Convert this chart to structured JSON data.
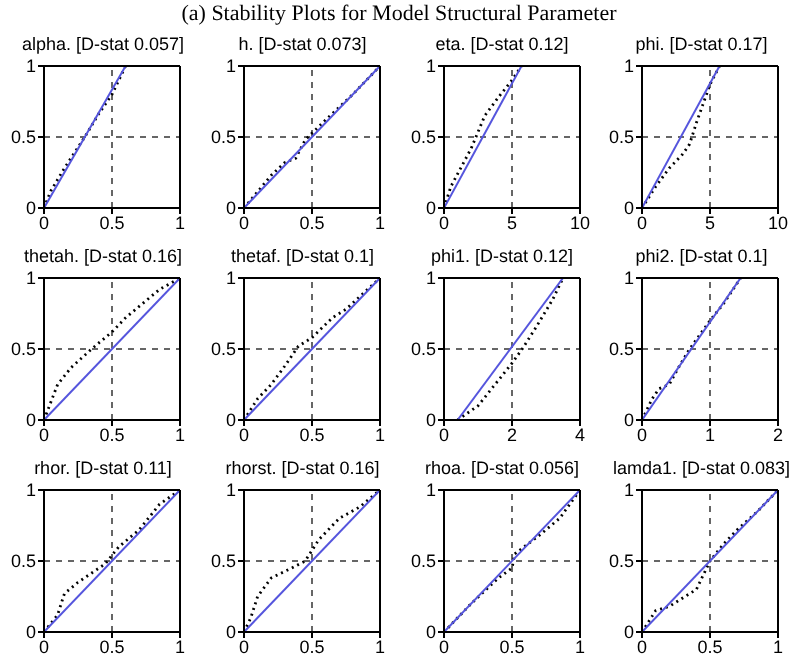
{
  "chart_data": [
    {
      "type": "other",
      "title": "(a)  Stability Plots for Model Structural Parameter"
    },
    {
      "type": "line",
      "title": "alpha. [D-stat 0.057]",
      "xlim": [
        0,
        1
      ],
      "xticks": [
        0,
        0.5,
        1
      ],
      "ylim": [
        0,
        1
      ],
      "yticks": [
        0,
        0.5,
        1
      ],
      "marker": "none",
      "ref_lines": [
        {
          "axis": "x",
          "value": 0.5,
          "color": "#666666",
          "line_style": "dashed"
        },
        {
          "axis": "y",
          "value": 0.5,
          "color": "#666666",
          "line_style": "dashed"
        }
      ],
      "series": [
        {
          "color": "#000000",
          "line_style": "dotted",
          "x": [
            0,
            0.05,
            0.15,
            0.3,
            0.4,
            0.5,
            0.6
          ],
          "values": [
            0,
            0.12,
            0.28,
            0.5,
            0.66,
            0.8,
            1
          ]
        },
        {
          "color": "#5555dd",
          "line_style": "solid",
          "x": [
            0,
            0.6
          ],
          "values": [
            0,
            1
          ]
        }
      ]
    },
    {
      "type": "line",
      "title": "h. [D-stat 0.073]",
      "xlim": [
        0,
        1
      ],
      "xticks": [
        0,
        0.5,
        1
      ],
      "ylim": [
        0,
        1
      ],
      "yticks": [
        0,
        0.5,
        1
      ],
      "marker": "none",
      "ref_lines": [
        {
          "axis": "x",
          "value": 0.5,
          "color": "#666666",
          "line_style": "dashed"
        },
        {
          "axis": "y",
          "value": 0.5,
          "color": "#666666",
          "line_style": "dashed"
        }
      ],
      "series": [
        {
          "color": "#000000",
          "line_style": "dotted",
          "x": [
            0,
            0.2,
            0.3,
            0.38,
            0.45,
            0.6,
            0.8,
            1
          ],
          "values": [
            0,
            0.23,
            0.32,
            0.35,
            0.48,
            0.62,
            0.8,
            1
          ]
        },
        {
          "color": "#5555dd",
          "line_style": "solid",
          "x": [
            0,
            1
          ],
          "values": [
            0,
            1
          ]
        }
      ]
    },
    {
      "type": "line",
      "title": "eta. [D-stat 0.12]",
      "xlim": [
        0,
        10
      ],
      "xticks": [
        0,
        5,
        10
      ],
      "ylim": [
        0,
        1
      ],
      "yticks": [
        0,
        0.5,
        1
      ],
      "marker": "none",
      "ref_lines": [
        {
          "axis": "x",
          "value": 5,
          "color": "#666666",
          "line_style": "dashed"
        },
        {
          "axis": "y",
          "value": 0.5,
          "color": "#666666",
          "line_style": "dashed"
        }
      ],
      "series": [
        {
          "color": "#000000",
          "line_style": "dotted",
          "x": [
            0,
            0.5,
            2,
            3,
            4,
            5,
            5.7
          ],
          "values": [
            0,
            0.15,
            0.42,
            0.65,
            0.78,
            0.9,
            1
          ]
        },
        {
          "color": "#5555dd",
          "line_style": "solid",
          "x": [
            0,
            5.7
          ],
          "values": [
            0,
            1
          ]
        }
      ]
    },
    {
      "type": "line",
      "title": "phi. [D-stat 0.17]",
      "xlim": [
        0,
        10
      ],
      "xticks": [
        0,
        5,
        10
      ],
      "ylim": [
        0,
        1
      ],
      "yticks": [
        0,
        0.5,
        1
      ],
      "marker": "none",
      "ref_lines": [
        {
          "axis": "x",
          "value": 5,
          "color": "#666666",
          "line_style": "dashed"
        },
        {
          "axis": "y",
          "value": 0.5,
          "color": "#666666",
          "line_style": "dashed"
        }
      ],
      "series": [
        {
          "color": "#000000",
          "line_style": "dotted",
          "x": [
            0,
            1,
            2,
            3,
            3.5,
            4,
            5,
            5.7
          ],
          "values": [
            0,
            0.15,
            0.28,
            0.38,
            0.45,
            0.6,
            0.87,
            1
          ]
        },
        {
          "color": "#5555dd",
          "line_style": "solid",
          "x": [
            0,
            5.7
          ],
          "values": [
            0,
            1
          ]
        }
      ]
    },
    {
      "type": "line",
      "title": "thetah. [D-stat 0.16]",
      "xlim": [
        0,
        1
      ],
      "xticks": [
        0,
        0.5,
        1
      ],
      "ylim": [
        0,
        1
      ],
      "yticks": [
        0,
        0.5,
        1
      ],
      "marker": "none",
      "ref_lines": [
        {
          "axis": "x",
          "value": 0.5,
          "color": "#666666",
          "line_style": "dashed"
        },
        {
          "axis": "y",
          "value": 0.5,
          "color": "#666666",
          "line_style": "dashed"
        }
      ],
      "series": [
        {
          "color": "#000000",
          "line_style": "dotted",
          "x": [
            0,
            0.1,
            0.2,
            0.35,
            0.5,
            0.6,
            0.7,
            0.85,
            1
          ],
          "values": [
            0,
            0.25,
            0.37,
            0.5,
            0.62,
            0.72,
            0.8,
            0.92,
            1
          ]
        },
        {
          "color": "#5555dd",
          "line_style": "solid",
          "x": [
            0,
            1
          ],
          "values": [
            0,
            1
          ]
        }
      ]
    },
    {
      "type": "line",
      "title": "thetaf. [D-stat 0.1]",
      "xlim": [
        0,
        1
      ],
      "xticks": [
        0,
        0.5,
        1
      ],
      "ylim": [
        0,
        1
      ],
      "yticks": [
        0,
        0.5,
        1
      ],
      "marker": "none",
      "ref_lines": [
        {
          "axis": "x",
          "value": 0.5,
          "color": "#666666",
          "line_style": "dashed"
        },
        {
          "axis": "y",
          "value": 0.5,
          "color": "#666666",
          "line_style": "dashed"
        }
      ],
      "series": [
        {
          "color": "#000000",
          "line_style": "dotted",
          "x": [
            0,
            0.1,
            0.2,
            0.3,
            0.4,
            0.5,
            0.65,
            0.75,
            1
          ],
          "values": [
            0,
            0.15,
            0.25,
            0.38,
            0.52,
            0.58,
            0.72,
            0.78,
            1
          ]
        },
        {
          "color": "#5555dd",
          "line_style": "solid",
          "x": [
            0,
            1
          ],
          "values": [
            0,
            1
          ]
        }
      ]
    },
    {
      "type": "line",
      "title": "phi1. [D-stat 0.12]",
      "xlim": [
        0,
        4
      ],
      "xticks": [
        0,
        2,
        4
      ],
      "ylim": [
        0,
        1
      ],
      "yticks": [
        0,
        0.5,
        1
      ],
      "marker": "none",
      "ref_lines": [
        {
          "axis": "x",
          "value": 2,
          "color": "#666666",
          "line_style": "dashed"
        },
        {
          "axis": "y",
          "value": 0.5,
          "color": "#666666",
          "line_style": "dashed"
        }
      ],
      "series": [
        {
          "color": "#000000",
          "line_style": "dotted",
          "x": [
            0.4,
            1,
            1.5,
            2,
            2.3,
            2.7,
            3.2,
            3.5
          ],
          "values": [
            0,
            0.1,
            0.25,
            0.4,
            0.5,
            0.65,
            0.85,
            1
          ]
        },
        {
          "color": "#5555dd",
          "line_style": "solid",
          "x": [
            0.4,
            3.5
          ],
          "values": [
            0,
            1
          ]
        }
      ]
    },
    {
      "type": "line",
      "title": "phi2. [D-stat 0.1]",
      "xlim": [
        0,
        2
      ],
      "xticks": [
        0,
        1,
        2
      ],
      "ylim": [
        0,
        1
      ],
      "yticks": [
        0,
        0.5,
        1
      ],
      "marker": "none",
      "ref_lines": [
        {
          "axis": "x",
          "value": 1,
          "color": "#666666",
          "line_style": "dashed"
        },
        {
          "axis": "y",
          "value": 0.5,
          "color": "#666666",
          "line_style": "dashed"
        }
      ],
      "series": [
        {
          "color": "#000000",
          "line_style": "dotted",
          "x": [
            0,
            0.15,
            0.25,
            0.4,
            0.55,
            0.7,
            0.85,
            1,
            1.2,
            1.45
          ],
          "values": [
            0,
            0.15,
            0.22,
            0.25,
            0.38,
            0.5,
            0.6,
            0.7,
            0.82,
            1
          ]
        },
        {
          "color": "#5555dd",
          "line_style": "solid",
          "x": [
            0,
            1.45
          ],
          "values": [
            0,
            1
          ]
        }
      ]
    },
    {
      "type": "line",
      "title": "rhor. [D-stat 0.11]",
      "xlim": [
        0,
        1
      ],
      "xticks": [
        0,
        0.5,
        1
      ],
      "ylim": [
        0,
        1
      ],
      "yticks": [
        0,
        0.5,
        1
      ],
      "marker": "none",
      "ref_lines": [
        {
          "axis": "x",
          "value": 0.5,
          "color": "#666666",
          "line_style": "dashed"
        },
        {
          "axis": "y",
          "value": 0.5,
          "color": "#666666",
          "line_style": "dashed"
        }
      ],
      "series": [
        {
          "color": "#000000",
          "line_style": "dotted",
          "x": [
            0,
            0.1,
            0.15,
            0.25,
            0.45,
            0.55,
            0.7,
            0.85,
            1
          ],
          "values": [
            0,
            0.12,
            0.27,
            0.35,
            0.48,
            0.6,
            0.72,
            0.9,
            1
          ]
        },
        {
          "color": "#5555dd",
          "line_style": "solid",
          "x": [
            0,
            1
          ],
          "values": [
            0,
            1
          ]
        }
      ]
    },
    {
      "type": "line",
      "title": "rhorst. [D-stat 0.16]",
      "xlim": [
        0,
        1
      ],
      "xticks": [
        0,
        0.5,
        1
      ],
      "ylim": [
        0,
        1
      ],
      "yticks": [
        0,
        0.5,
        1
      ],
      "marker": "none",
      "ref_lines": [
        {
          "axis": "x",
          "value": 0.5,
          "color": "#666666",
          "line_style": "dashed"
        },
        {
          "axis": "y",
          "value": 0.5,
          "color": "#666666",
          "line_style": "dashed"
        }
      ],
      "series": [
        {
          "color": "#000000",
          "line_style": "dotted",
          "x": [
            0,
            0.05,
            0.1,
            0.2,
            0.35,
            0.45,
            0.55,
            0.7,
            0.85,
            1
          ],
          "values": [
            0,
            0.1,
            0.25,
            0.38,
            0.45,
            0.5,
            0.65,
            0.8,
            0.88,
            1
          ]
        },
        {
          "color": "#5555dd",
          "line_style": "solid",
          "x": [
            0,
            1
          ],
          "values": [
            0,
            1
          ]
        }
      ]
    },
    {
      "type": "line",
      "title": "rhoa. [D-stat 0.056]",
      "xlim": [
        0,
        1
      ],
      "xticks": [
        0,
        0.5,
        1
      ],
      "ylim": [
        0,
        1
      ],
      "yticks": [
        0,
        0.5,
        1
      ],
      "marker": "none",
      "ref_lines": [
        {
          "axis": "x",
          "value": 0.5,
          "color": "#666666",
          "line_style": "dashed"
        },
        {
          "axis": "y",
          "value": 0.5,
          "color": "#666666",
          "line_style": "dashed"
        }
      ],
      "series": [
        {
          "color": "#000000",
          "line_style": "dotted",
          "x": [
            0,
            0.2,
            0.4,
            0.5,
            0.52,
            0.7,
            0.85,
            1
          ],
          "values": [
            0,
            0.2,
            0.38,
            0.45,
            0.55,
            0.68,
            0.8,
            1
          ]
        },
        {
          "color": "#5555dd",
          "line_style": "solid",
          "x": [
            0,
            1
          ],
          "values": [
            0,
            1
          ]
        }
      ]
    },
    {
      "type": "line",
      "title": "lamda1. [D-stat 0.083]",
      "xlim": [
        0,
        1
      ],
      "xticks": [
        0,
        0.5,
        1
      ],
      "ylim": [
        0,
        1
      ],
      "yticks": [
        0,
        0.5,
        1
      ],
      "marker": "none",
      "ref_lines": [
        {
          "axis": "x",
          "value": 0.5,
          "color": "#666666",
          "line_style": "dashed"
        },
        {
          "axis": "y",
          "value": 0.5,
          "color": "#666666",
          "line_style": "dashed"
        }
      ],
      "series": [
        {
          "color": "#000000",
          "line_style": "dotted",
          "x": [
            0,
            0.1,
            0.2,
            0.4,
            0.45,
            0.5,
            0.6,
            0.7,
            0.85,
            1
          ],
          "values": [
            0,
            0.15,
            0.18,
            0.3,
            0.4,
            0.5,
            0.62,
            0.72,
            0.85,
            1
          ]
        },
        {
          "color": "#5555dd",
          "line_style": "solid",
          "x": [
            0,
            1
          ],
          "values": [
            0,
            1
          ]
        }
      ]
    }
  ]
}
